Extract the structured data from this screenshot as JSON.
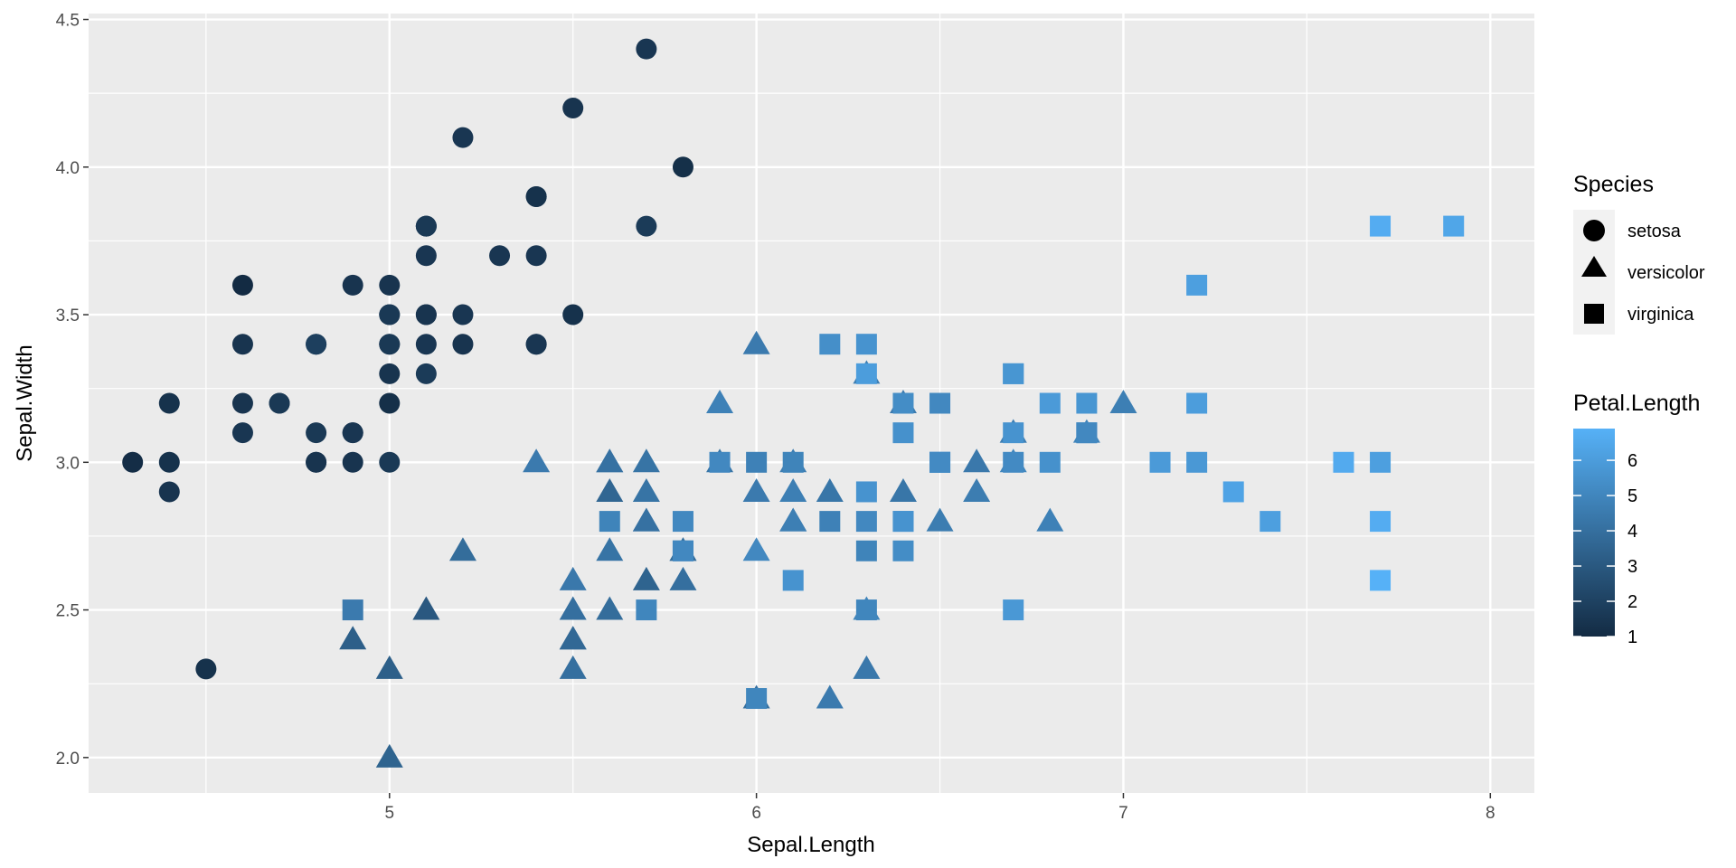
{
  "chart_data": {
    "type": "scatter",
    "xlabel": "Sepal.Length",
    "ylabel": "Sepal.Width",
    "xlim": [
      4.18,
      8.12
    ],
    "ylim": [
      1.88,
      4.52
    ],
    "x_ticks": [
      5,
      6,
      7,
      8
    ],
    "x_tick_labels": [
      "5",
      "6",
      "7",
      "8"
    ],
    "y_ticks": [
      2.0,
      2.5,
      3.0,
      3.5,
      4.0,
      4.5
    ],
    "y_tick_labels": [
      "2.0",
      "2.5",
      "3.0",
      "3.5",
      "4.0",
      "4.5"
    ],
    "grid": true,
    "legend_placement": "right",
    "shape_legend": {
      "title": "Species",
      "items": [
        {
          "label": "setosa",
          "shape": "circle"
        },
        {
          "label": "versicolor",
          "shape": "triangle"
        },
        {
          "label": "virginica",
          "shape": "square"
        }
      ]
    },
    "color_legend": {
      "title": "Petal.Length",
      "ticks": [
        1,
        2,
        3,
        4,
        5,
        6
      ],
      "tick_labels": [
        "1",
        "2",
        "3",
        "4",
        "5",
        "6"
      ],
      "range": [
        1.0,
        6.9
      ],
      "low_color": "#132B43",
      "high_color": "#56B1F7"
    },
    "series": [
      {
        "name": "setosa",
        "shape": "circle",
        "points": [
          [
            5.1,
            3.5,
            1.4
          ],
          [
            4.9,
            3.0,
            1.4
          ],
          [
            4.7,
            3.2,
            1.3
          ],
          [
            4.6,
            3.1,
            1.5
          ],
          [
            5.0,
            3.6,
            1.4
          ],
          [
            5.4,
            3.9,
            1.7
          ],
          [
            4.6,
            3.4,
            1.4
          ],
          [
            5.0,
            3.4,
            1.5
          ],
          [
            4.4,
            2.9,
            1.4
          ],
          [
            4.9,
            3.1,
            1.5
          ],
          [
            5.4,
            3.7,
            1.5
          ],
          [
            4.8,
            3.4,
            1.6
          ],
          [
            4.8,
            3.0,
            1.4
          ],
          [
            4.3,
            3.0,
            1.1
          ],
          [
            5.8,
            4.0,
            1.2
          ],
          [
            5.7,
            4.4,
            1.5
          ],
          [
            5.4,
            3.9,
            1.3
          ],
          [
            5.1,
            3.5,
            1.4
          ],
          [
            5.7,
            3.8,
            1.7
          ],
          [
            5.1,
            3.8,
            1.5
          ],
          [
            5.4,
            3.4,
            1.7
          ],
          [
            5.1,
            3.7,
            1.5
          ],
          [
            4.6,
            3.6,
            1.0
          ],
          [
            5.1,
            3.3,
            1.7
          ],
          [
            4.8,
            3.4,
            1.9
          ],
          [
            5.0,
            3.0,
            1.6
          ],
          [
            5.0,
            3.4,
            1.6
          ],
          [
            5.2,
            3.5,
            1.5
          ],
          [
            5.2,
            3.4,
            1.4
          ],
          [
            4.7,
            3.2,
            1.6
          ],
          [
            4.8,
            3.1,
            1.6
          ],
          [
            5.4,
            3.4,
            1.5
          ],
          [
            5.2,
            4.1,
            1.5
          ],
          [
            5.5,
            4.2,
            1.4
          ],
          [
            4.9,
            3.1,
            1.5
          ],
          [
            5.0,
            3.2,
            1.2
          ],
          [
            5.5,
            3.5,
            1.3
          ],
          [
            4.9,
            3.6,
            1.4
          ],
          [
            4.4,
            3.0,
            1.3
          ],
          [
            5.1,
            3.4,
            1.5
          ],
          [
            5.0,
            3.5,
            1.3
          ],
          [
            4.5,
            2.3,
            1.3
          ],
          [
            4.4,
            3.2,
            1.3
          ],
          [
            5.0,
            3.5,
            1.6
          ],
          [
            5.1,
            3.8,
            1.9
          ],
          [
            4.8,
            3.0,
            1.4
          ],
          [
            5.1,
            3.8,
            1.6
          ],
          [
            4.6,
            3.2,
            1.4
          ],
          [
            5.3,
            3.7,
            1.5
          ],
          [
            5.0,
            3.3,
            1.4
          ]
        ]
      },
      {
        "name": "versicolor",
        "shape": "triangle",
        "points": [
          [
            7.0,
            3.2,
            4.7
          ],
          [
            6.4,
            3.2,
            4.5
          ],
          [
            6.9,
            3.1,
            4.9
          ],
          [
            5.5,
            2.3,
            4.0
          ],
          [
            6.5,
            2.8,
            4.6
          ],
          [
            5.7,
            2.8,
            4.5
          ],
          [
            6.3,
            3.3,
            4.7
          ],
          [
            4.9,
            2.4,
            3.3
          ],
          [
            6.6,
            2.9,
            4.6
          ],
          [
            5.2,
            2.7,
            3.9
          ],
          [
            5.0,
            2.0,
            3.5
          ],
          [
            5.9,
            3.0,
            4.2
          ],
          [
            6.0,
            2.2,
            4.0
          ],
          [
            6.1,
            2.9,
            4.7
          ],
          [
            5.6,
            2.9,
            3.6
          ],
          [
            6.7,
            3.1,
            4.4
          ],
          [
            5.6,
            3.0,
            4.5
          ],
          [
            5.8,
            2.7,
            4.1
          ],
          [
            6.2,
            2.2,
            4.5
          ],
          [
            5.6,
            2.5,
            3.9
          ],
          [
            5.9,
            3.2,
            4.8
          ],
          [
            6.1,
            2.8,
            4.0
          ],
          [
            6.3,
            2.5,
            4.9
          ],
          [
            6.1,
            2.8,
            4.7
          ],
          [
            6.4,
            2.9,
            4.3
          ],
          [
            6.6,
            3.0,
            4.4
          ],
          [
            6.8,
            2.8,
            4.8
          ],
          [
            6.7,
            3.0,
            5.0
          ],
          [
            6.0,
            2.9,
            4.5
          ],
          [
            5.7,
            2.6,
            3.5
          ],
          [
            5.5,
            2.4,
            3.8
          ],
          [
            5.5,
            2.4,
            3.7
          ],
          [
            5.8,
            2.7,
            3.9
          ],
          [
            6.0,
            2.7,
            5.1
          ],
          [
            5.4,
            3.0,
            4.5
          ],
          [
            6.0,
            3.4,
            4.5
          ],
          [
            6.7,
            3.1,
            4.7
          ],
          [
            6.3,
            2.3,
            4.4
          ],
          [
            5.6,
            3.0,
            4.1
          ],
          [
            5.5,
            2.5,
            4.0
          ],
          [
            5.5,
            2.6,
            4.4
          ],
          [
            6.1,
            3.0,
            4.6
          ],
          [
            5.8,
            2.6,
            4.0
          ],
          [
            5.0,
            2.3,
            3.3
          ],
          [
            5.6,
            2.7,
            4.2
          ],
          [
            5.7,
            3.0,
            4.2
          ],
          [
            5.7,
            2.9,
            4.2
          ],
          [
            6.2,
            2.9,
            4.3
          ],
          [
            5.1,
            2.5,
            3.0
          ],
          [
            5.7,
            2.8,
            4.1
          ]
        ]
      },
      {
        "name": "virginica",
        "shape": "square",
        "points": [
          [
            6.3,
            3.3,
            6.0
          ],
          [
            5.8,
            2.7,
            5.1
          ],
          [
            7.1,
            3.0,
            5.9
          ],
          [
            6.3,
            2.9,
            5.6
          ],
          [
            6.5,
            3.0,
            5.8
          ],
          [
            7.6,
            3.0,
            6.6
          ],
          [
            4.9,
            2.5,
            4.5
          ],
          [
            7.3,
            2.9,
            6.3
          ],
          [
            6.7,
            2.5,
            5.8
          ],
          [
            7.2,
            3.6,
            6.1
          ],
          [
            6.5,
            3.2,
            5.1
          ],
          [
            6.4,
            2.7,
            5.3
          ],
          [
            6.8,
            3.0,
            5.5
          ],
          [
            5.7,
            2.5,
            5.0
          ],
          [
            5.8,
            2.8,
            5.1
          ],
          [
            6.4,
            3.2,
            5.3
          ],
          [
            6.5,
            3.0,
            5.5
          ],
          [
            7.7,
            3.8,
            6.7
          ],
          [
            7.7,
            2.6,
            6.9
          ],
          [
            6.0,
            2.2,
            5.0
          ],
          [
            6.9,
            3.2,
            5.7
          ],
          [
            5.6,
            2.8,
            4.9
          ],
          [
            7.7,
            2.8,
            6.7
          ],
          [
            6.3,
            2.7,
            4.9
          ],
          [
            6.7,
            3.3,
            5.7
          ],
          [
            7.2,
            3.2,
            6.0
          ],
          [
            6.2,
            2.8,
            4.8
          ],
          [
            6.1,
            3.0,
            4.9
          ],
          [
            6.4,
            2.8,
            5.6
          ],
          [
            7.2,
            3.0,
            5.8
          ],
          [
            7.4,
            2.8,
            6.1
          ],
          [
            7.9,
            3.8,
            6.4
          ],
          [
            6.4,
            2.8,
            5.6
          ],
          [
            6.3,
            2.8,
            5.1
          ],
          [
            6.1,
            2.6,
            5.6
          ],
          [
            7.7,
            3.0,
            6.1
          ],
          [
            6.3,
            3.4,
            5.6
          ],
          [
            6.4,
            3.1,
            5.5
          ],
          [
            6.0,
            3.0,
            4.8
          ],
          [
            6.9,
            3.1,
            5.4
          ],
          [
            6.7,
            3.1,
            5.6
          ],
          [
            6.9,
            3.1,
            5.1
          ],
          [
            5.8,
            2.7,
            5.1
          ],
          [
            6.8,
            3.2,
            5.9
          ],
          [
            6.7,
            3.3,
            5.7
          ],
          [
            6.7,
            3.0,
            5.2
          ],
          [
            6.3,
            2.5,
            5.0
          ],
          [
            6.5,
            3.0,
            5.2
          ],
          [
            6.2,
            3.4,
            5.4
          ],
          [
            5.9,
            3.0,
            5.1
          ]
        ]
      }
    ]
  }
}
